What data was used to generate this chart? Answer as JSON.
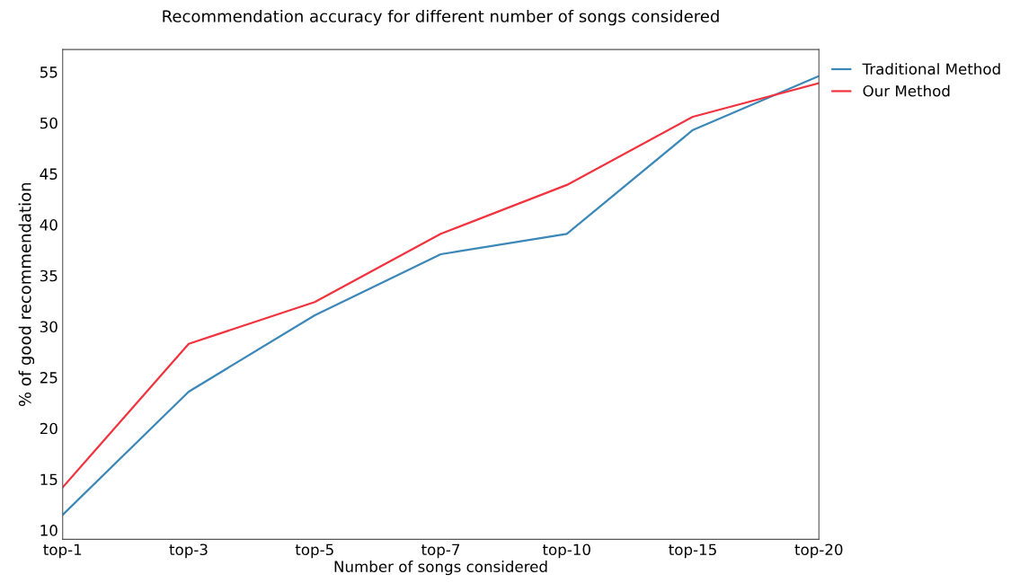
{
  "chart_data": {
    "type": "line",
    "title": "Recommendation accuracy for different number of songs considered",
    "xlabel": "Number of songs considered",
    "ylabel": "% of good recommendation",
    "categories": [
      "top-1",
      "top-3",
      "top-5",
      "top-7",
      "top-10",
      "top-15",
      "top-20"
    ],
    "series": [
      {
        "name": "Traditional Method",
        "color": "#3a87b8",
        "values": [
          11.5,
          23.6,
          31.1,
          37.1,
          39.1,
          49.3,
          54.6
        ]
      },
      {
        "name": "Our Method",
        "color": "#f0333e",
        "values": [
          14.2,
          28.3,
          32.4,
          39.1,
          43.9,
          50.6,
          53.9
        ]
      }
    ],
    "ylim": [
      9.1,
      57.2
    ],
    "yticks": [
      10,
      15,
      20,
      25,
      30,
      35,
      40,
      45,
      50,
      55
    ],
    "grid": false,
    "legend": "top right",
    "marker": "none",
    "line_style": "solid"
  }
}
